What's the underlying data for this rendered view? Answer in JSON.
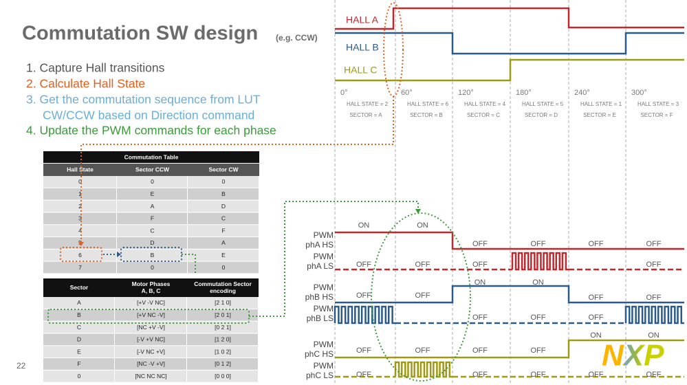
{
  "title": "Commutation SW design",
  "subtitle": "(e.g. CCW)",
  "steps": [
    "1.  Capture Hall transitions",
    "2.  Calculate Hall State",
    "3.  Get the commutation sequence from LUT",
    "CW/CCW based on Direction command",
    "4.  Update the PWM commands for each phase"
  ],
  "page_number": "22",
  "commutation_table": {
    "title": "Commutation Table",
    "headers": [
      "Hall State",
      "Sector CCW",
      "Sector CW"
    ],
    "rows": [
      [
        "0",
        "0",
        "0"
      ],
      [
        "1",
        "E",
        "B"
      ],
      [
        "2",
        "A",
        "D"
      ],
      [
        "3",
        "F",
        "C"
      ],
      [
        "4",
        "C",
        "F"
      ],
      [
        "5",
        "D",
        "A"
      ],
      [
        "6",
        "B",
        "E"
      ],
      [
        "7",
        "0",
        "0"
      ]
    ]
  },
  "sector_table": {
    "headers": [
      [
        "Sector"
      ],
      [
        "Motor Phases",
        "A, B, C"
      ],
      [
        "Commutation Sector",
        "encoding"
      ]
    ],
    "rows": [
      [
        "A",
        "[+V -V NC]",
        "[2 1 0]"
      ],
      [
        "B",
        "[+V NC -V]",
        "[2 0 1]"
      ],
      [
        "C",
        "[NC +V -V]",
        "[0 2 1]"
      ],
      [
        "D",
        "[-V +V NC]",
        "[1 2 0]"
      ],
      [
        "E",
        "[-V NC +V]",
        "[1 0 2]"
      ],
      [
        "F",
        "[NC -V +V]",
        "[0 1 2]"
      ],
      [
        "0",
        "[NC NC NC]",
        "[0 0 0]"
      ]
    ]
  },
  "hall_diagram": {
    "signals": [
      "HALL A",
      "HALL B",
      "HALL C"
    ],
    "angles": [
      "0°",
      "60°",
      "120°",
      "180°",
      "240°",
      "300°"
    ],
    "hall_states": [
      "HALL STATE = 2",
      "HALL STATE = 6",
      "HALL STATE = 4",
      "HALL STATE = 5",
      "HALL STATE = 1",
      "HALL STATE = 3"
    ],
    "sectors": [
      "SECTOR = A",
      "SECTOR = B",
      "SECTOR = C",
      "SECTOR = D",
      "SECTOR = E",
      "SECTOR = F"
    ]
  },
  "pwm_diagram": {
    "rows": [
      {
        "label": [
          "PWM",
          "phA HS"
        ],
        "states": [
          "ON",
          "ON",
          "OFF",
          "OFF",
          "OFF",
          "OFF"
        ]
      },
      {
        "label": [
          "PWM",
          "phA LS"
        ],
        "states": [
          "OFF",
          "OFF",
          "OFF",
          "OFF"
        ]
      },
      {
        "label": [
          "PWM",
          "phB HS"
        ],
        "states": [
          "OFF",
          "OFF",
          "ON",
          "ON",
          "OFF",
          "OFF"
        ]
      },
      {
        "label": [
          "PWM",
          "phB LS"
        ],
        "states": [
          "OFF",
          "OFF",
          "OFF"
        ]
      },
      {
        "label": [
          "PWM",
          "phC HS"
        ],
        "states": [
          "OFF",
          "OFF",
          "OFF",
          "OFF",
          "ON",
          "ON"
        ]
      },
      {
        "label": [
          "PWM",
          "phC LS"
        ],
        "states": [
          "OFF",
          "OFF",
          "OFF",
          "OFF",
          "OFF"
        ]
      }
    ]
  },
  "logo": "NXP"
}
